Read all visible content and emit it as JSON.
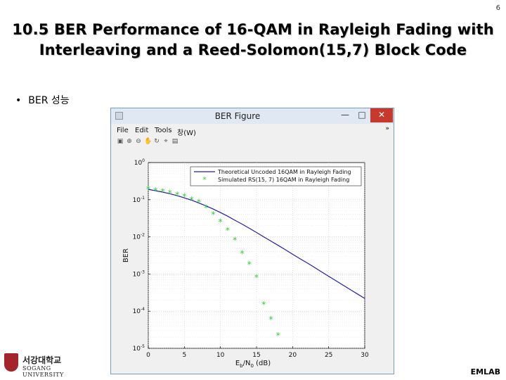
{
  "slide": {
    "number": "6",
    "title_line1": "10.5 BER Performance of 16-QAM in Rayleigh Fading with",
    "title_line2": "Interleaving and a Reed-Solomon(15,7) Block Code",
    "bullet_text": "BER 성능",
    "footer": "EMLAB",
    "logo_korean": "서강대학교",
    "logo_english": "SOGANG UNIVERSITY"
  },
  "window": {
    "title": "BER Figure",
    "minimize": "—",
    "maximize": "□",
    "close": "✕",
    "menu": [
      "File",
      "Edit",
      "Tools",
      "창(W)"
    ],
    "menu_overflow": "»",
    "toolbar_icons": [
      "print-icon",
      "zoom-in-icon",
      "zoom-out-icon",
      "pan-icon",
      "rotate-icon",
      "data-cursor-icon",
      "colorbar-icon"
    ]
  },
  "chart_data": {
    "type": "line",
    "title": "",
    "xlabel": "Eb/N0 (dB)",
    "ylabel": "BER",
    "xlim": [
      0,
      30
    ],
    "ylim": [
      1e-05,
      1
    ],
    "yscale": "log",
    "grid": true,
    "legend_position": "top-right",
    "x_ticks": [
      "0",
      "5",
      "10",
      "15",
      "20",
      "25",
      "30"
    ],
    "y_ticks": [
      {
        "base": "10",
        "exp": "0"
      },
      {
        "base": "10",
        "exp": "-1"
      },
      {
        "base": "10",
        "exp": "-2"
      },
      {
        "base": "10",
        "exp": "-3"
      },
      {
        "base": "10",
        "exp": "-4"
      },
      {
        "base": "10",
        "exp": "-5"
      }
    ],
    "series": [
      {
        "name": "Theoretical Uncoded 16QAM in Rayleigh Fading",
        "style": "line",
        "color": "#1f1fa8",
        "x": [
          0,
          1,
          2,
          3,
          4,
          5,
          6,
          7,
          8,
          9,
          10,
          11,
          12,
          13,
          14,
          15,
          16,
          17,
          18,
          19,
          20,
          21,
          22,
          23,
          24,
          25,
          26,
          27,
          28,
          29,
          30
        ],
        "y": [
          0.19,
          0.175,
          0.16,
          0.145,
          0.128,
          0.112,
          0.097,
          0.082,
          0.068,
          0.056,
          0.045,
          0.036,
          0.028,
          0.022,
          0.017,
          0.0131,
          0.01,
          0.0077,
          0.0059,
          0.0045,
          0.0034,
          0.0026,
          0.002,
          0.00152,
          0.00115,
          0.00087,
          0.00066,
          0.0005,
          0.00038,
          0.00029,
          0.00022
        ]
      },
      {
        "name": "Simulated RS(15, 7) 16QAM in Rayleigh Fading",
        "style": "marker",
        "marker": "*",
        "color": "#2fcc2f",
        "x": [
          0,
          1,
          2,
          3,
          4,
          5,
          6,
          7,
          8,
          9,
          10,
          11,
          12,
          13,
          14,
          15,
          16,
          17,
          18
        ],
        "y": [
          0.19,
          0.175,
          0.165,
          0.15,
          0.135,
          0.12,
          0.1,
          0.085,
          0.06,
          0.04,
          0.025,
          0.015,
          0.008,
          0.0035,
          0.0018,
          0.0008,
          0.00015,
          6e-05,
          2.2e-05
        ]
      }
    ]
  }
}
